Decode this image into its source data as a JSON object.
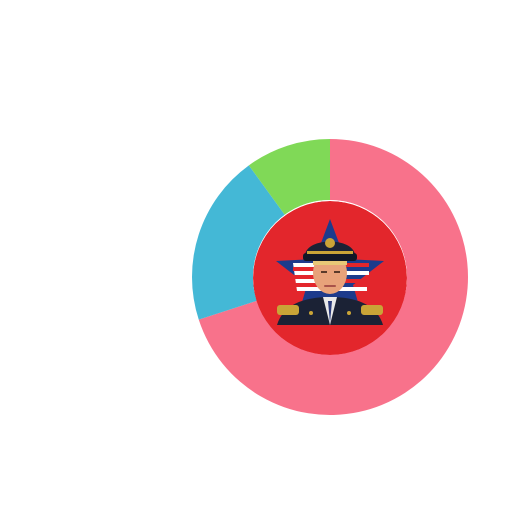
{
  "chart_data": {
    "type": "pie",
    "variant": "donut",
    "values": [
      70,
      20,
      10
    ],
    "colors": [
      "#f8728b",
      "#44b8d6",
      "#80d957"
    ],
    "legend": "none",
    "center_image": "portrait-on-star-badge",
    "center_background_color": "#e3262c"
  }
}
